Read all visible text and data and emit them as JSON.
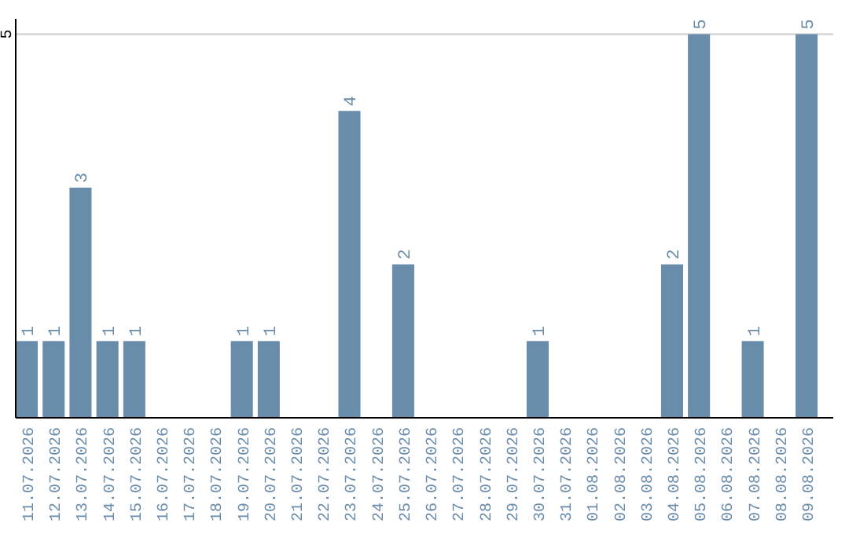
{
  "chart_data": {
    "type": "bar",
    "categories": [
      "11.07.2026",
      "12.07.2026",
      "13.07.2026",
      "14.07.2026",
      "15.07.2026",
      "16.07.2026",
      "17.07.2026",
      "18.07.2026",
      "19.07.2026",
      "20.07.2026",
      "21.07.2026",
      "22.07.2026",
      "23.07.2026",
      "24.07.2026",
      "25.07.2026",
      "26.07.2026",
      "27.07.2026",
      "28.07.2026",
      "29.07.2026",
      "30.07.2026",
      "31.07.2026",
      "01.08.2026",
      "02.08.2026",
      "03.08.2026",
      "04.08.2026",
      "05.08.2026",
      "06.08.2026",
      "07.08.2026",
      "08.08.2026",
      "09.08.2026"
    ],
    "values": [
      1,
      1,
      3,
      1,
      1,
      0,
      0,
      0,
      1,
      1,
      0,
      0,
      4,
      0,
      2,
      0,
      0,
      0,
      0,
      1,
      0,
      0,
      0,
      0,
      2,
      5,
      0,
      1,
      0,
      5
    ],
    "value_labels": [
      "1",
      "1",
      "3",
      "1",
      "1",
      null,
      null,
      null,
      "1",
      "1",
      null,
      null,
      "4",
      null,
      "2",
      null,
      null,
      null,
      null,
      "1",
      null,
      null,
      null,
      null,
      "2",
      "5",
      null,
      "1",
      null,
      "5"
    ],
    "color": "#6a8cab",
    "ylim": [
      0,
      5.2
    ],
    "yticks": [
      5
    ],
    "grid": "y"
  }
}
